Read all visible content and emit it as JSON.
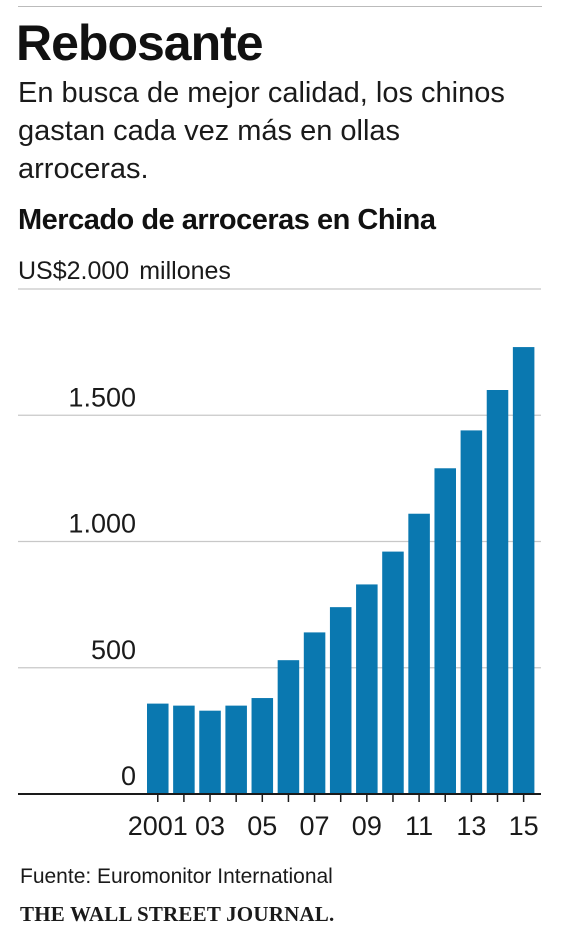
{
  "headline": "Rebosante",
  "subhead": "En busca de mejor calidad, los chinos gastan cada vez más en ollas arroceras.",
  "source": "Fuente: Euromonitor International",
  "publisher": "THE WALL STREET JOURNAL.",
  "colors": {
    "bar": "#0a78b0",
    "gridline": "#c8c8c8",
    "axis": "#1a1a1a"
  },
  "chart_data": {
    "type": "bar",
    "title": "Mercado de arroceras en China",
    "ylabel": "US$2.000",
    "ylabel_suffix": "millones",
    "xlabel": "",
    "ylim": [
      0,
      2000
    ],
    "grid": true,
    "categories": [
      "2001",
      "2002",
      "2003",
      "2004",
      "2005",
      "2006",
      "2007",
      "2008",
      "2009",
      "2010",
      "2011",
      "2012",
      "2013",
      "2014",
      "2015"
    ],
    "tick_labels": [
      "2001",
      "",
      "03",
      "",
      "05",
      "",
      "07",
      "",
      "09",
      "",
      "11",
      "",
      "13",
      "",
      "15"
    ],
    "y_ticks": [
      {
        "value": 0,
        "label": "0"
      },
      {
        "value": 500,
        "label": "500"
      },
      {
        "value": 1000,
        "label": "1.000"
      },
      {
        "value": 1500,
        "label": "1.500"
      },
      {
        "value": 2000,
        "label": ""
      }
    ],
    "values": [
      358,
      350,
      330,
      350,
      380,
      530,
      640,
      740,
      830,
      960,
      1110,
      1290,
      1440,
      1600,
      1770
    ]
  }
}
